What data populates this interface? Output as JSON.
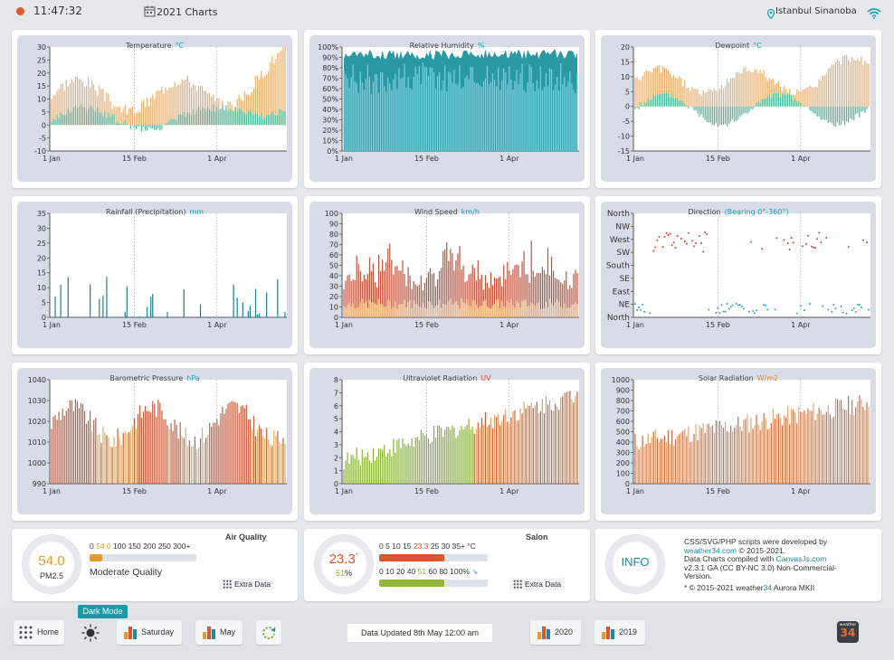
{
  "header": {
    "time": "11:47:32",
    "title": "2021 Charts",
    "location": "Istanbul Sinanoba",
    "status_color": "#e05a2b"
  },
  "charts": [
    {
      "title": "Temperature",
      "unit": "°C",
      "unit_color": "#1da1b5",
      "type": "bar",
      "y_ticks": [
        "30",
        "25",
        "20",
        "15",
        "10",
        "5",
        "0",
        "-5",
        "-10"
      ],
      "ylim": [
        -10,
        30
      ],
      "x_ticks": [
        "1 Jan",
        "15 Feb",
        "1 Apr"
      ],
      "series": [
        {
          "name": "high",
          "color": "#e7b074"
        },
        {
          "name": "low",
          "color": "#4fb79a"
        }
      ]
    },
    {
      "title": "Relative Humidity",
      "unit": "%",
      "unit_color": "#1da1b5",
      "type": "area",
      "y_ticks": [
        "100%",
        "90%",
        "80%",
        "70%",
        "60%",
        "50%",
        "40%",
        "30%",
        "20%",
        "10%",
        "0%"
      ],
      "ylim": [
        0,
        100
      ],
      "x_ticks": [
        "1 Jan",
        "15 Feb",
        "1 Apr"
      ],
      "series": [
        {
          "name": "max",
          "color": "#2a9aa2"
        },
        {
          "name": "min",
          "color": "#7cd0de"
        }
      ]
    },
    {
      "title": "Dewpoint",
      "unit": "°C",
      "unit_color": "#1da1b5",
      "type": "bar",
      "y_ticks": [
        "20",
        "15",
        "10",
        "5",
        "0",
        "-5",
        "-10",
        "-15"
      ],
      "ylim": [
        -15,
        20
      ],
      "x_ticks": [
        "1 Jan",
        "15 Feb",
        "1 Apr"
      ],
      "series": [
        {
          "name": "high",
          "color": "#e7b074"
        },
        {
          "name": "low",
          "color": "#4fb79a"
        }
      ]
    },
    {
      "title": "Rainfall (Precipitation)",
      "unit": "mm",
      "unit_color": "#1da1b5",
      "type": "bar",
      "y_ticks": [
        "35",
        "30",
        "25",
        "20",
        "15",
        "10",
        "5",
        "0"
      ],
      "ylim": [
        0,
        35
      ],
      "x_ticks": [
        "1 Jan",
        "15 Feb",
        "1 Apr"
      ],
      "series": [
        {
          "name": "rain",
          "color": "#1e7f97"
        }
      ]
    },
    {
      "title": "Wind Speed",
      "unit": "km/h",
      "unit_color": "#1da1b5",
      "type": "bar",
      "y_ticks": [
        "100",
        "90",
        "80",
        "70",
        "60",
        "50",
        "40",
        "30",
        "20",
        "10",
        "0"
      ],
      "ylim": [
        0,
        100
      ],
      "x_ticks": [
        "1 Jan",
        "15 Feb",
        "1 Apr"
      ],
      "series": [
        {
          "name": "gust",
          "color": "#c0503a"
        },
        {
          "name": "avg",
          "color": "#e8b27a"
        }
      ]
    },
    {
      "title": "Direction",
      "unit": "(Bearing 0°-360°)",
      "unit_color": "#1da1b5",
      "type": "scatter",
      "y_ticks": [
        "North",
        "NW",
        "West",
        "SW",
        "South",
        "SE",
        "East",
        "NE",
        "North"
      ],
      "ylim": [
        0,
        360
      ],
      "x_ticks": [
        "1 Jan",
        "15 Feb",
        "1 Apr"
      ],
      "series": [
        {
          "name": "red",
          "color": "#d0413a"
        },
        {
          "name": "teal",
          "color": "#2aa6b3"
        }
      ]
    },
    {
      "title": "Barometric Pressure",
      "unit": "hPa",
      "unit_color": "#1da1b5",
      "type": "bar",
      "y_ticks": [
        "1040",
        "1030",
        "1020",
        "1010",
        "1000",
        "990"
      ],
      "ylim": [
        990,
        1040
      ],
      "x_ticks": [
        "1 Jan",
        "15 Feb",
        "1 Apr"
      ],
      "series": [
        {
          "name": "pressure",
          "color": "#c65c3f"
        }
      ]
    },
    {
      "title": "Ultraviolet Radiation",
      "unit": "UV",
      "unit_color": "#d24c2c",
      "type": "bar",
      "y_ticks": [
        "8",
        "7",
        "6",
        "5",
        "4",
        "3",
        "2",
        "1",
        "0"
      ],
      "ylim": [
        0,
        8
      ],
      "x_ticks": [
        "1 Jan",
        "15 Feb",
        "1 Apr"
      ],
      "series": [
        {
          "name": "uv",
          "color": "#8bb13d"
        }
      ]
    },
    {
      "title": "Solar Radiation",
      "unit": "W/m2",
      "unit_color": "#d88a2a",
      "type": "bar",
      "y_ticks": [
        "1000",
        "900",
        "800",
        "700",
        "600",
        "500",
        "400",
        "300",
        "200",
        "100",
        "0"
      ],
      "ylim": [
        0,
        1000
      ],
      "x_ticks": [
        "1 Jan",
        "15 Feb",
        "1 Apr"
      ],
      "series": [
        {
          "name": "solar",
          "color": "#e0a56c"
        }
      ]
    }
  ],
  "air_quality": {
    "title": "Air Quality",
    "value": "54.0",
    "label": "PM2.5",
    "status": "Moderate Quality",
    "scale": [
      "0",
      "54.0",
      "100",
      "150",
      "200",
      "250",
      "300+"
    ],
    "fill": 0.12,
    "accent": "#e39a2c",
    "extra": "Extra Data"
  },
  "salon": {
    "title": "Salon",
    "temp": "23.3",
    "deg": "°",
    "humidity": "51",
    "hum_unit": "%",
    "temp_scale": [
      "0",
      "5",
      "10",
      "15",
      "23.3",
      "25",
      "30",
      "35+",
      "°C"
    ],
    "temp_fill": 0.6,
    "hum_scale": [
      "0",
      "10",
      "20",
      "40",
      "51",
      "60",
      "80",
      "100%"
    ],
    "hum_fill": 0.6,
    "temp_color": "#d9572f",
    "hum_color": "#93b63a",
    "trend": "↘",
    "extra": "Extra Data"
  },
  "info": {
    "label": "INFO",
    "line1": "CSS/SVG/PHP scripts were developed by",
    "line2_link": "weather34.com",
    "line2_rest": " © 2015-2021.",
    "line3": "Data Charts compiled with ",
    "line3_link": "CanvasJs.com",
    "line4": "v2.3.1 GA (CC BY-NC 3.0) Non-Commercial-",
    "line5": "Version.",
    "line6a": "* © 2015-2021 weather",
    "line6b": "34",
    "line6c": " Aurora MKII"
  },
  "footer": {
    "home": "Home",
    "dark_mode": "Dark Mode",
    "saturday": "Saturday",
    "may": "May",
    "updated": "Data Updated 8th May 12:00 am",
    "y2020": "2020",
    "y2019": "2019",
    "logo_top": "weather",
    "logo_num": "34"
  }
}
